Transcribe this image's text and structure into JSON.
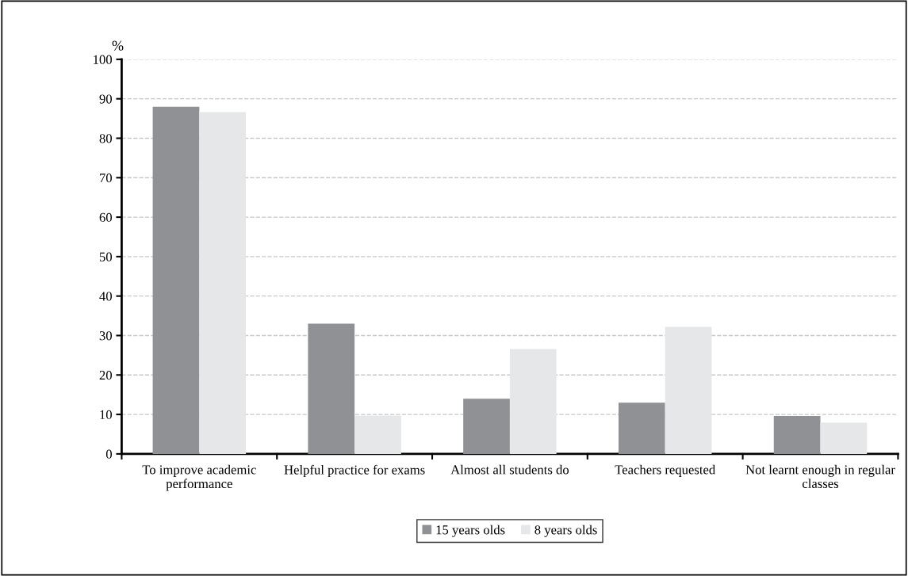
{
  "chart_data": {
    "type": "bar",
    "ylabel": "%",
    "categories": [
      "To improve academic performance",
      "Helpful practice for exams",
      "Almost all students do",
      "Teachers requested",
      "Not learnt enough in regular classes"
    ],
    "series": [
      {
        "name": "15 years olds",
        "color": "#909194",
        "values": [
          88,
          33,
          14,
          13,
          9.6
        ]
      },
      {
        "name": "8 years olds",
        "color": "#e6e7e8",
        "values": [
          86.6,
          9.7,
          26.6,
          32.2,
          7.9
        ]
      }
    ],
    "ylim": [
      0,
      100
    ],
    "yticks": [
      0,
      10,
      20,
      30,
      40,
      50,
      60,
      70,
      80,
      90,
      100
    ],
    "grid": "y",
    "legend": "bottom"
  }
}
